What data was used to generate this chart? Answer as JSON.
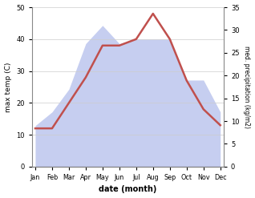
{
  "months": [
    "Jan",
    "Feb",
    "Mar",
    "Apr",
    "May",
    "Jun",
    "Jul",
    "Aug",
    "Sep",
    "Oct",
    "Nov",
    "Dec"
  ],
  "temp": [
    12,
    12,
    20,
    28,
    38,
    38,
    40,
    48,
    40,
    27,
    18,
    13
  ],
  "precip": [
    9,
    12,
    17,
    27,
    31,
    27,
    28,
    28,
    28,
    19,
    19,
    12
  ],
  "temp_color": "#c0504d",
  "precip_color_fill": "#c6cef0",
  "left_ylabel": "max temp (C)",
  "right_ylabel": "med. precipitation (kg/m2)",
  "xlabel": "date (month)",
  "ylim_left": [
    0,
    50
  ],
  "ylim_right": [
    0,
    35
  ],
  "yticks_left": [
    0,
    10,
    20,
    30,
    40,
    50
  ],
  "yticks_right": [
    0,
    5,
    10,
    15,
    20,
    25,
    30,
    35
  ],
  "bg_color": "#ffffff",
  "temp_linewidth": 1.8
}
